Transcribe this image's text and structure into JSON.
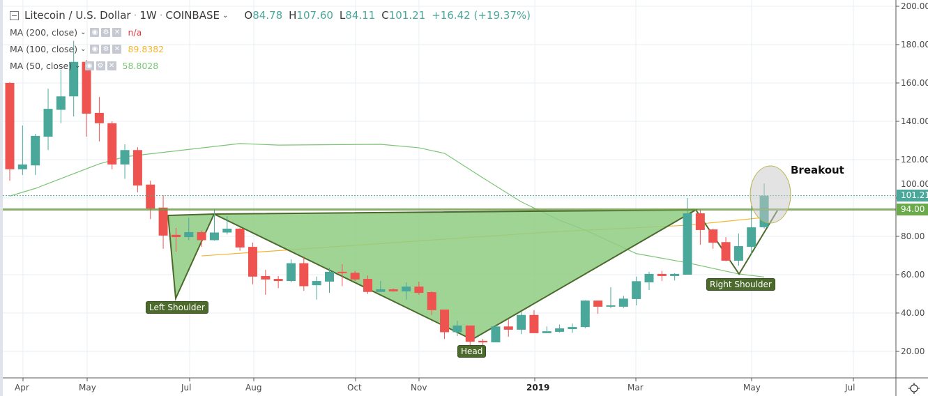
{
  "header": {
    "symbol": "Litecoin / U.S. Dollar",
    "interval": "1W",
    "exchange": "COINBASE",
    "open_label": "O",
    "open": "84.78",
    "high_label": "H",
    "high": "107.60",
    "low_label": "L",
    "low": "84.11",
    "close_label": "C",
    "close": "101.21",
    "change": "+16.42 (+19.37%)"
  },
  "indicators": [
    {
      "label": "MA (200, close)",
      "value": "n/a",
      "color": "#e0383f"
    },
    {
      "label": "MA (100, close)",
      "value": "89.8382",
      "color": "#f5b52e"
    },
    {
      "label": "MA (50, close)",
      "value": "58.8028",
      "color": "#7cc576"
    }
  ],
  "icons": {
    "eye": "eye-icon",
    "settings": "gear-icon",
    "remove": "close-icon",
    "collapse": "minus-square-icon",
    "chart_settings": "gear-icon"
  },
  "annotations": {
    "left_shoulder": "Left Shoulder",
    "head": "Head",
    "right_shoulder": "Right Shoulder",
    "breakout": "Breakout"
  },
  "price_badges": {
    "last": "101.21",
    "level": "94.00"
  },
  "colors": {
    "up": "#4aa89b",
    "down": "#ef5350",
    "pattern_fill": "#8fcc82",
    "pattern_stroke": "#4c6a2b",
    "level_line": "#6a9a45",
    "ma100": "#f5b52e",
    "ma50": "#7cc576"
  },
  "chart_data": {
    "type": "candlestick",
    "title": "Litecoin / U.S. Dollar · 1W · COINBASE",
    "ylim": [
      20,
      200
    ],
    "yticks": [
      "200.00",
      "180.00",
      "160.00",
      "140.00",
      "120.00",
      "100.00",
      "80.00",
      "60.00",
      "40.00",
      "20.00"
    ],
    "xticks": [
      "Apr",
      "May",
      "Jul",
      "Aug",
      "Oct",
      "Nov",
      "2019",
      "Mar",
      "May",
      "Jul"
    ],
    "grid": true,
    "ohlc": [
      [
        160,
        160.5,
        109,
        115
      ],
      [
        115,
        137.8,
        112,
        117.5
      ],
      [
        117,
        133.5,
        112,
        132.4
      ],
      [
        132,
        157,
        125,
        146.5
      ],
      [
        146,
        167,
        139,
        153
      ],
      [
        153,
        182,
        142.5,
        171
      ],
      [
        171,
        172,
        132,
        144
      ],
      [
        144.4,
        152.7,
        129.5,
        139
      ],
      [
        139,
        140,
        115,
        117.5
      ],
      [
        117.5,
        128,
        110,
        125
      ],
      [
        125,
        126.5,
        103,
        106.5
      ],
      [
        107,
        109,
        89,
        94.5
      ],
      [
        95,
        101.5,
        73.5,
        80.4
      ],
      [
        80.8,
        84.4,
        72,
        79.6
      ],
      [
        79.6,
        89.8,
        78,
        82.2
      ],
      [
        82.2,
        83,
        74.5,
        78
      ],
      [
        78,
        94.2,
        77.8,
        82
      ],
      [
        82,
        90.5,
        81,
        84
      ],
      [
        84,
        84.5,
        72.5,
        74.2
      ],
      [
        74.5,
        76.7,
        55,
        59
      ],
      [
        59.3,
        62.5,
        49.5,
        57.5
      ],
      [
        57.8,
        59.3,
        53,
        56.7
      ],
      [
        56.7,
        68,
        56,
        66
      ],
      [
        66,
        69.5,
        51.6,
        54
      ],
      [
        54.5,
        59,
        47,
        56.7
      ],
      [
        56.4,
        63.6,
        50.5,
        61.5
      ],
      [
        61.5,
        65.5,
        54,
        60.8
      ],
      [
        61,
        62,
        56.7,
        57.5
      ],
      [
        57.8,
        59.6,
        50,
        51
      ],
      [
        51,
        56.7,
        51,
        52.4
      ],
      [
        52.4,
        52.8,
        51.1,
        51.3
      ],
      [
        51.3,
        56,
        47,
        53.8
      ],
      [
        53.8,
        56.4,
        49.5,
        50.5
      ],
      [
        50.9,
        51.3,
        39,
        41.5
      ],
      [
        41.8,
        41.8,
        26.5,
        30
      ],
      [
        30,
        36,
        28,
        33.5
      ],
      [
        33.5,
        33.5,
        22.5,
        25
      ],
      [
        25.5,
        26.5,
        22,
        24.7
      ],
      [
        24.7,
        33.8,
        24.7,
        33
      ],
      [
        33,
        36.7,
        27.6,
        31.3
      ],
      [
        31.3,
        40.4,
        29,
        39
      ],
      [
        39,
        41.5,
        29.5,
        29.5
      ],
      [
        29.5,
        33,
        29.5,
        30.5
      ],
      [
        30.2,
        34,
        29.8,
        32
      ],
      [
        31.6,
        34.5,
        29.6,
        32.7
      ],
      [
        32.7,
        46.7,
        32,
        46.5
      ],
      [
        46.5,
        46.5,
        39.6,
        43.3
      ],
      [
        43.3,
        53.5,
        42.6,
        44
      ],
      [
        43.3,
        49,
        42.6,
        47.5
      ],
      [
        47.3,
        59,
        44,
        56.6
      ],
      [
        56,
        61.5,
        52,
        60.4
      ],
      [
        60.4,
        62,
        56.7,
        59.3
      ],
      [
        59.3,
        60.8,
        57,
        60.4
      ],
      [
        60,
        100,
        60,
        92
      ],
      [
        92,
        94.2,
        75.6,
        83.3
      ],
      [
        83.6,
        84,
        73.5,
        76.7
      ],
      [
        77,
        79.6,
        67,
        67.3
      ],
      [
        67.3,
        81.5,
        64.7,
        74.9
      ],
      [
        74.5,
        96,
        70.5,
        84.7
      ],
      [
        84.78,
        107.6,
        84.11,
        101.21
      ]
    ],
    "series": [
      {
        "name": "MA (50, close)",
        "points": [
          [
            0,
            101
          ],
          [
            2,
            105
          ],
          [
            7,
            117.8
          ],
          [
            9,
            121.5
          ],
          [
            18,
            128.4
          ],
          [
            21,
            127.6
          ],
          [
            29,
            128
          ],
          [
            32,
            126.2
          ],
          [
            34,
            123.3
          ],
          [
            37,
            110.5
          ],
          [
            40,
            98
          ],
          [
            43,
            88.4
          ],
          [
            45,
            83.3
          ],
          [
            49,
            71
          ],
          [
            53,
            66.2
          ],
          [
            57,
            60.4
          ],
          [
            59,
            58.8
          ]
        ]
      },
      {
        "name": "MA (100, close)",
        "points": [
          [
            15,
            69.8
          ],
          [
            42,
            82.2
          ],
          [
            53,
            85.8
          ],
          [
            59,
            89.84
          ]
        ]
      }
    ],
    "horizontal_levels": [
      94.0,
      101.21
    ]
  }
}
